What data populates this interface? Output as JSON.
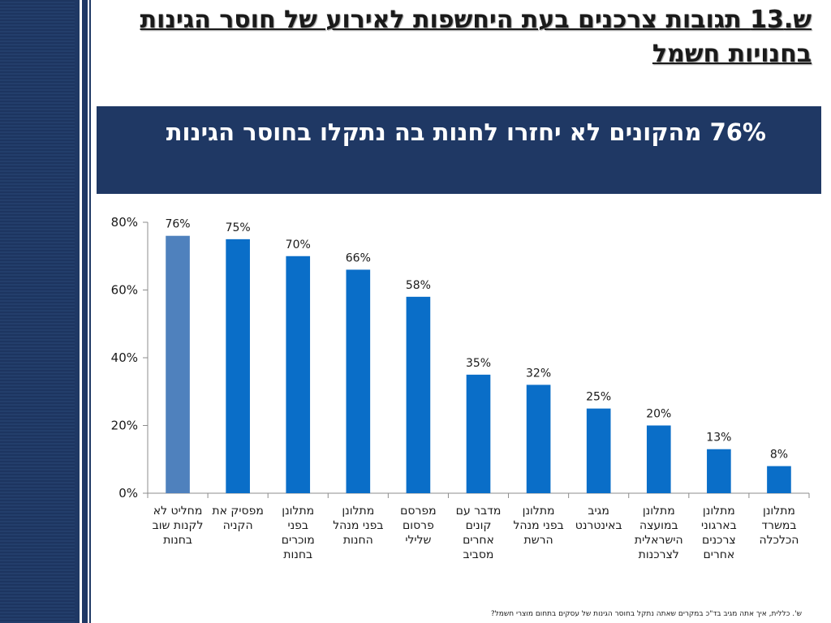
{
  "slide": {
    "title": "ש.13 תגובות צרכנים בעת היחשפות לאירוע של חוסר הגינות בחנויות חשמל",
    "banner": "76% מהקונים לא יחזרו לחנות בה נתקלו בחוסר הגינות",
    "footnote": "ש'. כללית, איך אתה מגיב בד\"כ במקרים שאתה נתקל בחוסר הגינות של עסקים בתחום מוצרי  חשמל?"
  },
  "colors": {
    "accent_dark": "#1f3864",
    "bar_primary": "#0a6ec8",
    "bar_highlight": "#4f81bd"
  },
  "chart_data": {
    "type": "bar",
    "title": "",
    "xlabel": "",
    "ylabel": "",
    "ylim": [
      0,
      80
    ],
    "yticks": [
      0,
      20,
      40,
      60,
      80
    ],
    "ytick_labels": [
      "0%",
      "20%",
      "40%",
      "60%",
      "80%"
    ],
    "grid": false,
    "legend": "none",
    "categories": [
      [
        "מחליט לא",
        "לקנות שוב",
        "בחנות"
      ],
      [
        "מפסיק את",
        "הקניה"
      ],
      [
        "מתלונן",
        "בפני",
        "מוכרים",
        "בחנות"
      ],
      [
        "מתלונן",
        "בפני מנהל",
        "החנות"
      ],
      [
        "מפרסם",
        "פרסום",
        "שלילי"
      ],
      [
        "מדבר עם",
        "קונים",
        "אחרים",
        "מסביב"
      ],
      [
        "מתלונן",
        "בפני מנהל",
        "הרשת"
      ],
      [
        "מגיב",
        "באינטרנט"
      ],
      [
        "מתלונן",
        "במועצה",
        "הישראלית",
        "לצרכנות"
      ],
      [
        "מתלונן",
        "בארגוני",
        "צרכנים",
        "אחרים"
      ],
      [
        "מתלונן",
        "במשרד",
        "הכלכלה"
      ]
    ],
    "values": [
      76,
      75,
      70,
      66,
      58,
      35,
      32,
      25,
      20,
      13,
      8
    ],
    "data_labels": [
      "76%",
      "75%",
      "70%",
      "66%",
      "58%",
      "35%",
      "32%",
      "25%",
      "20%",
      "13%",
      "8%"
    ],
    "highlight_index": 0
  }
}
